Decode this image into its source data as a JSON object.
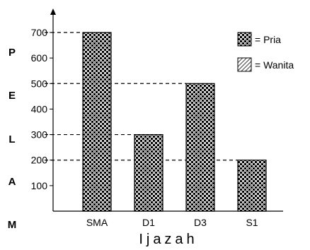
{
  "chart_data": {
    "type": "bar",
    "categories": [
      "SMA",
      "D1",
      "D3",
      "S1"
    ],
    "series": [
      {
        "name": "Pria",
        "values": [
          700,
          300,
          500,
          200
        ],
        "pattern": "checker-dots"
      }
    ],
    "legend": [
      {
        "label": "= Pria",
        "pattern": "checker-dots"
      },
      {
        "label": "= Wanita",
        "pattern": "diagonal-hatch"
      }
    ],
    "y_ticks": [
      100,
      200,
      300,
      400,
      500,
      600,
      700
    ],
    "ylim": [
      0,
      800
    ],
    "ylabel_letters": [
      "P",
      "E",
      "L",
      "A",
      "M"
    ],
    "xlabel": "Ijazah",
    "reference_lines": [
      700,
      500,
      300,
      200
    ],
    "legend_position": "top-right",
    "grid": false,
    "colors": {
      "ink": "#000000",
      "background": "#ffffff"
    }
  }
}
